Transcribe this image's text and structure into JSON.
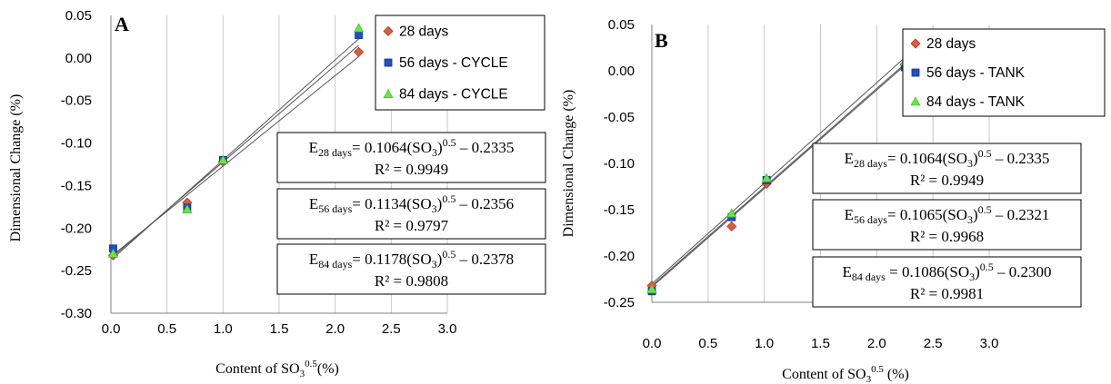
{
  "chart_data": [
    {
      "type": "scatter",
      "panel_label": "A",
      "xlabel_main": "Content of SO",
      "xlabel_sub": "3",
      "xlabel_sup": "0.5",
      "xlabel_tail": "(%)",
      "ylabel": "Dimensional Change (%)",
      "xlim": [
        0,
        3
      ],
      "ylim": [
        -0.3,
        0.05
      ],
      "x_ticks": [
        "0.0",
        "0.5",
        "1.0",
        "1.5",
        "2.0",
        "2.5",
        "3.0"
      ],
      "y_ticks": [
        "0.05",
        "0.00",
        "-0.05",
        "-0.10",
        "-0.15",
        "-0.20",
        "-0.25",
        "-0.30"
      ],
      "grid": "vertical",
      "series": [
        {
          "name": "28 days",
          "marker": "diamond",
          "color": "#e05a3c",
          "x": [
            0.02,
            0.68,
            1.0,
            2.21
          ],
          "y": [
            -0.232,
            -0.17,
            -0.122,
            0.007
          ],
          "fit": {
            "slope": 0.1064,
            "intercept": -0.2335
          }
        },
        {
          "name": "56 days - CYCLE",
          "marker": "square",
          "color": "#2050c8",
          "x": [
            0.02,
            0.68,
            1.0,
            2.21
          ],
          "y": [
            -0.224,
            -0.176,
            -0.12,
            0.027
          ],
          "fit": {
            "slope": 0.1134,
            "intercept": -0.2356
          }
        },
        {
          "name": "84 days - CYCLE",
          "marker": "triangle",
          "color": "#66e844",
          "x": [
            0.02,
            0.68,
            1.0,
            2.21
          ],
          "y": [
            -0.23,
            -0.178,
            -0.12,
            0.035
          ],
          "fit": {
            "slope": 0.1178,
            "intercept": -0.2378
          }
        }
      ],
      "equations": [
        {
          "sub": "28 days",
          "body": "= 0.1064(SO",
          "body_sub": "3",
          "body_sup": "0.5",
          "tail": " – 0.2335",
          "r2": "R² = 0.9949"
        },
        {
          "sub": "56 days",
          "body": "= 0.1134(SO",
          "body_sub": "3",
          "body_sup": "0.5",
          "tail": " – 0.2356",
          "r2": "R² = 0.9797"
        },
        {
          "sub": "84 days",
          "body": "= 0.1178(SO",
          "body_sub": "3",
          "body_sup": "0.5",
          "tail": " – 0.2378",
          "r2": "R² = 0.9808"
        }
      ]
    },
    {
      "type": "scatter",
      "panel_label": "B",
      "xlabel_main": "Content of SO",
      "xlabel_sub": "3",
      "xlabel_sup": "0.5",
      "xlabel_tail": " (%)",
      "ylabel": "Dimensional Change (%)",
      "xlim": [
        0,
        3
      ],
      "ylim": [
        -0.25,
        0.05
      ],
      "x_ticks": [
        "0.0",
        "0.5",
        "1.0",
        "1.5",
        "2.0",
        "2.5",
        "3.0"
      ],
      "y_ticks": [
        "0.05",
        "0.00",
        "-0.05",
        "-0.10",
        "-0.15",
        "-0.20",
        "-0.25"
      ],
      "grid": "vertical",
      "series": [
        {
          "name": "28 days",
          "marker": "diamond",
          "color": "#e05a3c",
          "x": [
            0.0,
            0.71,
            1.02,
            2.25
          ],
          "y": [
            -0.232,
            -0.168,
            -0.122,
            0.007
          ],
          "fit": {
            "slope": 0.1064,
            "intercept": -0.2335
          }
        },
        {
          "name": "56 days - TANK",
          "marker": "square",
          "color": "#2050c8",
          "x": [
            0.0,
            0.71,
            1.02,
            2.25
          ],
          "y": [
            -0.238,
            -0.158,
            -0.118,
            0.004
          ],
          "fit": {
            "slope": 0.1065,
            "intercept": -0.2321
          }
        },
        {
          "name": "84 days - TANK",
          "marker": "triangle",
          "color": "#66e844",
          "x": [
            0.0,
            0.71,
            1.02,
            2.25
          ],
          "y": [
            -0.236,
            -0.154,
            -0.116,
            0.01
          ],
          "fit": {
            "slope": 0.1086,
            "intercept": -0.23
          }
        }
      ],
      "equations": [
        {
          "sub": "28 days",
          "body": "= 0.1064(SO",
          "body_sub": "3",
          "body_sup": "0.5",
          "tail": " – 0.2335",
          "r2": "R² = 0.9949"
        },
        {
          "sub": "56 days",
          "body": "= 0.1065(SO",
          "body_sub": "3",
          "body_sup": "0.5",
          "tail": " – 0.2321",
          "r2": "R² = 0.9968"
        },
        {
          "sub": "84 days",
          "body": " = 0.1086(SO",
          "body_sub": "3",
          "body_sup": "0.5",
          "tail": " – 0.2300",
          "r2": "R² = 0.9981"
        }
      ]
    }
  ]
}
